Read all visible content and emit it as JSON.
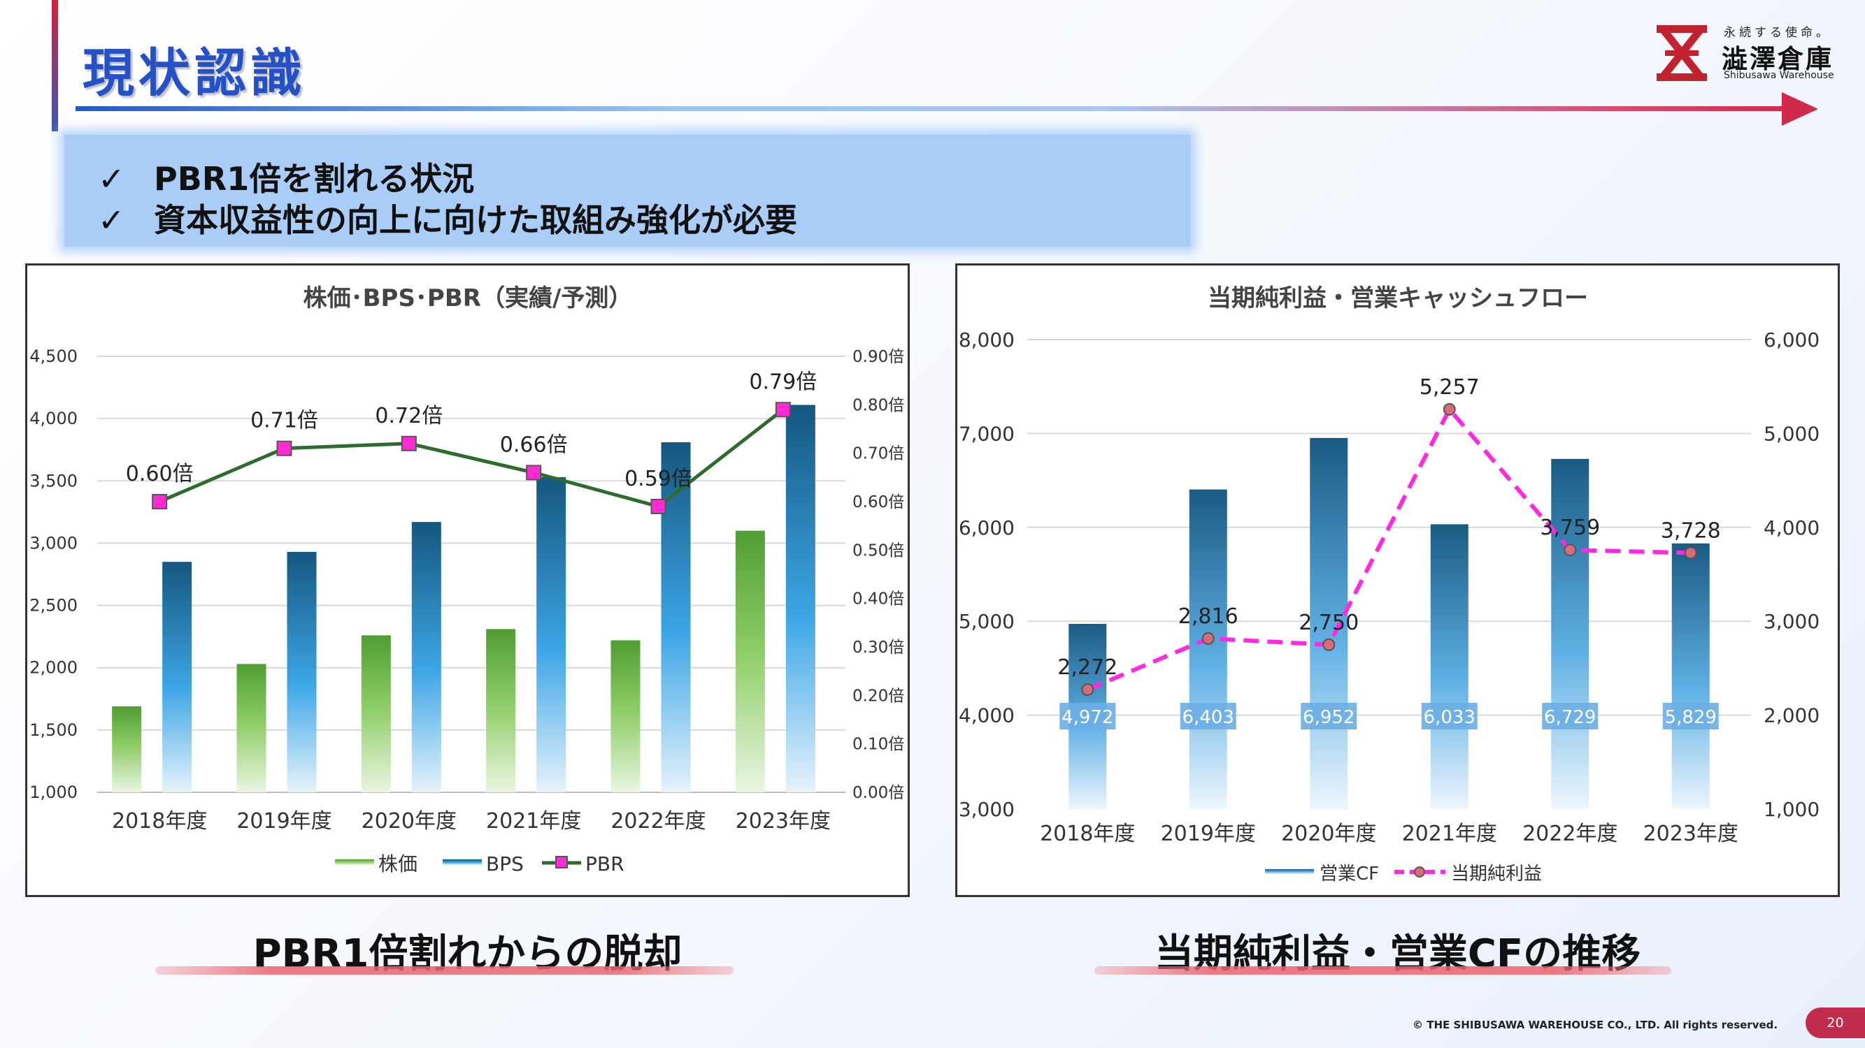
{
  "page": {
    "title": "現状認識",
    "bullets": [
      "PBR1倍を割れる状況",
      "資本収益性の向上に向けた取組み強化が必要"
    ],
    "check_mark": "✓",
    "logo": {
      "tagline": "永続する使命。",
      "name": "澁澤倉庫",
      "name_en": "Shibusawa Warehouse",
      "icon": "shibusawa-x-logo-icon",
      "color": "#c0232f"
    },
    "caption_left": "PBR1倍割れからの脱却",
    "caption_right": "当期純利益・営業CFの推移",
    "copyright": "© THE SHIBUSAWA WAREHOUSE CO., LTD. All rights reserved.",
    "page_number": "20"
  },
  "chart_data": [
    {
      "type": "bar",
      "title": "株価･BPS･PBR（実績/予測）",
      "categories": [
        "2018年度",
        "2019年度",
        "2020年度",
        "2021年度",
        "2022年度",
        "2023年度"
      ],
      "y_left": {
        "min": 1000,
        "max": 4500,
        "step": 500,
        "ticks": [
          "1,000",
          "1,500",
          "2,000",
          "2,500",
          "3,000",
          "3,500",
          "4,000",
          "4,500"
        ]
      },
      "y_right": {
        "min": 0,
        "max": 0.9,
        "step": 0.1,
        "ticks": [
          "0.00倍",
          "0.10倍",
          "0.20倍",
          "0.30倍",
          "0.40倍",
          "0.50倍",
          "0.60倍",
          "0.70倍",
          "0.80倍",
          "0.90倍"
        ]
      },
      "series": [
        {
          "name": "株価",
          "kind": "bar",
          "axis": "left",
          "color": "#5aaa3c",
          "values": [
            1690,
            2030,
            2260,
            2310,
            2220,
            3100
          ]
        },
        {
          "name": "BPS",
          "kind": "bar",
          "axis": "left",
          "color": "#1a6fa8",
          "values": [
            2850,
            2930,
            3170,
            3530,
            3810,
            4110
          ]
        },
        {
          "name": "PBR",
          "kind": "line",
          "axis": "right",
          "color": "#2e6b2e",
          "marker_color": "#ff2ad4",
          "values": [
            0.6,
            0.71,
            0.72,
            0.66,
            0.59,
            0.79
          ],
          "labels": [
            "0.60倍",
            "0.71倍",
            "0.72倍",
            "0.66倍",
            "0.59倍",
            "0.79倍"
          ]
        }
      ],
      "grid": true,
      "legend": "bottom"
    },
    {
      "type": "bar",
      "title": "当期純利益・営業キャッシュフロー",
      "categories": [
        "2018年度",
        "2019年度",
        "2020年度",
        "2021年度",
        "2022年度",
        "2023年度"
      ],
      "y_left": {
        "min": 3000,
        "max": 8000,
        "step": 1000,
        "ticks": [
          "3,000",
          "4,000",
          "5,000",
          "6,000",
          "7,000",
          "8,000"
        ]
      },
      "y_right": {
        "min": 1000,
        "max": 6000,
        "step": 1000,
        "ticks": [
          "1,000",
          "2,000",
          "3,000",
          "4,000",
          "5,000",
          "6,000"
        ]
      },
      "series": [
        {
          "name": "営業CF",
          "kind": "bar",
          "axis": "left",
          "color": "#1a5e88",
          "values": [
            4972,
            6403,
            6952,
            6033,
            6729,
            5829
          ],
          "labels": [
            "4,972",
            "6,403",
            "6,952",
            "6,033",
            "6,729",
            "5,829"
          ]
        },
        {
          "name": "当期純利益",
          "kind": "line",
          "axis": "right",
          "color": "#ff2ae0",
          "marker_color": "#d96a7a",
          "dashed": true,
          "values": [
            2272,
            2816,
            2750,
            5257,
            3759,
            3728
          ],
          "labels": [
            "2,272",
            "2,816",
            "2,750",
            "5,257",
            "3,759",
            "3,728"
          ]
        }
      ],
      "grid": true,
      "legend": "bottom"
    }
  ]
}
